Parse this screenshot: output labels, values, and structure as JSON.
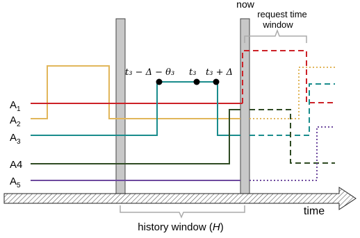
{
  "labels": {
    "now": "now",
    "request_window_line1": "request time",
    "request_window_line2": "window",
    "time_axis": "time",
    "history_window": "history window (",
    "history_symbol": "H",
    "history_close": ")",
    "t_left": "t₃ − Δ − θ₃",
    "t_mid": "t₃",
    "t_right": "t₃ + Δ"
  },
  "series": [
    {
      "name": "A",
      "sub": "1",
      "color": "#cc2127"
    },
    {
      "name": "A",
      "sub": "2",
      "color": "#e1b65a"
    },
    {
      "name": "A",
      "sub": "3",
      "color": "#198c8c"
    },
    {
      "name": "A4",
      "sub": "",
      "color": "#2e4a22"
    },
    {
      "name": "A",
      "sub": "5",
      "color": "#6e4a9e"
    }
  ]
}
